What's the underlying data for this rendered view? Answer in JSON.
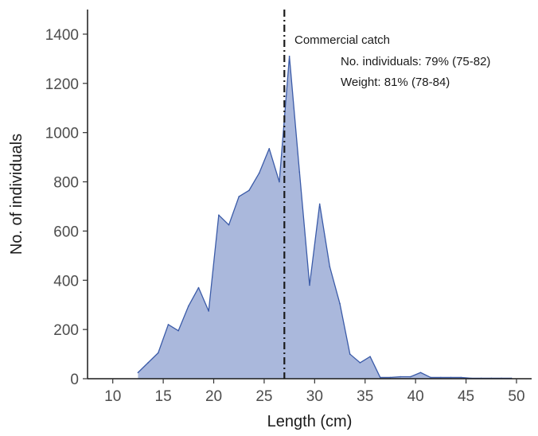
{
  "chart_data": {
    "type": "area",
    "title": "",
    "xlabel": "Length (cm)",
    "ylabel": "No. of individuals",
    "xlim": [
      7.5,
      51.5
    ],
    "ylim": [
      0,
      1500
    ],
    "x_ticks": [
      10,
      15,
      20,
      25,
      30,
      35,
      40,
      45,
      50
    ],
    "y_ticks": [
      0,
      200,
      400,
      600,
      800,
      1000,
      1200,
      1400
    ],
    "grid": false,
    "series": [
      {
        "x": [
          12.5,
          13.5,
          14.5,
          15.5,
          16.5,
          17.5,
          18.5,
          19.5,
          20.5,
          21.5,
          22.5,
          23.5,
          24.5,
          25.5,
          26.5,
          27.5,
          28.5,
          29.5,
          30.5,
          31.5,
          32.5,
          33.5,
          34.5,
          35.5,
          36.5,
          37.5,
          38.5,
          39.5,
          40.5,
          41.5,
          42.5,
          43.5,
          44.5,
          45.5,
          46.5,
          47.5,
          48.5,
          49.5
        ],
        "values": [
          25,
          65,
          105,
          220,
          195,
          295,
          370,
          275,
          665,
          625,
          740,
          765,
          835,
          935,
          800,
          1310,
          840,
          380,
          710,
          455,
          305,
          100,
          65,
          90,
          5,
          5,
          8,
          8,
          25,
          5,
          5,
          5,
          5,
          2,
          2,
          2,
          2,
          2
        ],
        "fill_color": "#aab8dc",
        "line_color": "#3b5ba8"
      }
    ],
    "reference_line": {
      "x": 27,
      "style": "dash-dot",
      "color": "#1a1a1a"
    },
    "annotations": {
      "line1": "Commercial catch",
      "line2": "No. individuals: 79% (75-82)",
      "line3": "Weight: 81% (78-84)"
    }
  }
}
